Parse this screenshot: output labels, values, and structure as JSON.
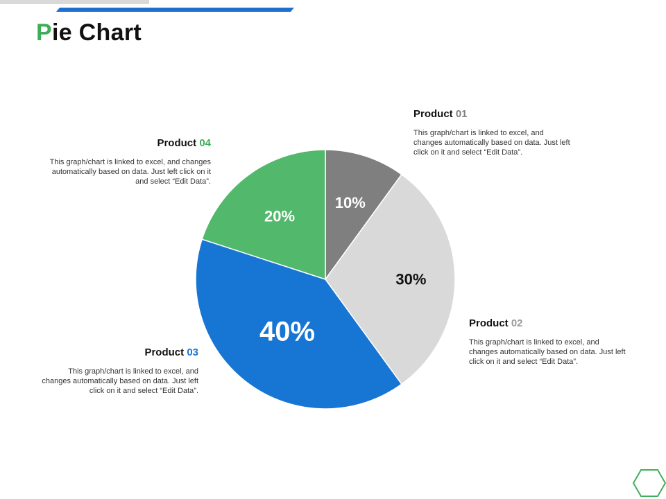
{
  "title": {
    "accent_letter": "P",
    "rest": "ie Chart"
  },
  "chart_data": {
    "type": "pie",
    "start_angle_deg": 0,
    "direction": "clockwise",
    "slices": [
      {
        "name": "Product 01",
        "value": 10,
        "label": "10%",
        "color": "#7f7f7f",
        "label_color": "#ffffff"
      },
      {
        "name": "Product 02",
        "value": 30,
        "label": "30%",
        "color": "#d9d9d9",
        "label_color": "#111111"
      },
      {
        "name": "Product 03",
        "value": 40,
        "label": "40%",
        "color": "#1775d3",
        "label_color": "#ffffff"
      },
      {
        "name": "Product 04",
        "value": 20,
        "label": "20%",
        "color": "#52b86b",
        "label_color": "#ffffff"
      }
    ]
  },
  "callouts": {
    "p01": {
      "word": "Product",
      "number": "01",
      "number_color": "#7f7f7f",
      "text": "This graph/chart is linked to excel, and changes automatically based on data. Just left click on it and select “Edit Data”."
    },
    "p02": {
      "word": "Product",
      "number": "02",
      "number_color": "#9a9a9a",
      "text": "This graph/chart is linked to excel, and changes automatically based on data. Just left click on it and select “Edit Data”."
    },
    "p03": {
      "word": "Product",
      "number": "03",
      "number_color": "#1775d3",
      "text": "This graph/chart is linked to excel, and changes automatically based on data. Just left click on it and select “Edit Data”."
    },
    "p04": {
      "word": "Product",
      "number": "04",
      "number_color": "#3fae5a",
      "text": "This graph/chart is linked to excel, and changes automatically based on data. Just left click on it and select “Edit Data”."
    }
  },
  "decor": {
    "hex_icon": "hexagon-outline-icon",
    "hex_color": "#3fae5a"
  }
}
